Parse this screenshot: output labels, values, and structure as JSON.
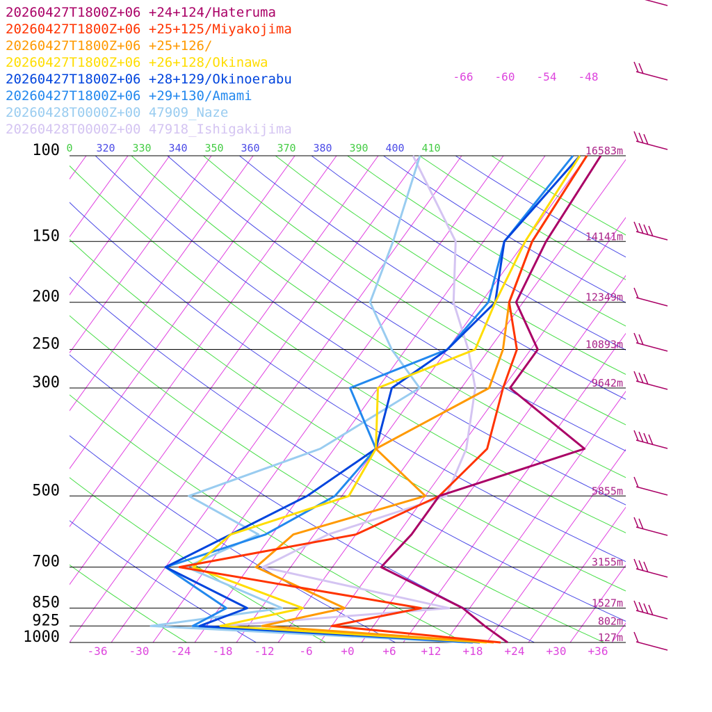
{
  "chart_data": {
    "type": "line",
    "title": "",
    "xlabel": "",
    "ylabel": "",
    "xlim": [
      -40,
      40
    ],
    "ylim": [
      1000,
      100
    ],
    "y_scale": "log",
    "skew": "Skew-T log-P",
    "y_ticks": [
      "100",
      "150",
      "200",
      "250",
      "300",
      "500",
      "700",
      "850",
      "925",
      "1000"
    ],
    "y_tick_values": [
      100,
      150,
      200,
      250,
      300,
      500,
      700,
      850,
      925,
      1000
    ],
    "x_ticks": [
      "-36",
      "-30",
      "-24",
      "-18",
      "-12",
      "-6",
      "+0",
      "+6",
      "+12",
      "+18",
      "+24",
      "+30",
      "+36"
    ],
    "x_tick_values": [
      -36,
      -30,
      -24,
      -18,
      -12,
      -6,
      0,
      6,
      12,
      18,
      24,
      30,
      36
    ],
    "height_labels": [
      {
        "p": 100,
        "text": "16583m"
      },
      {
        "p": 150,
        "text": "14141m"
      },
      {
        "p": 200,
        "text": "12349m"
      },
      {
        "p": 250,
        "text": "10893m"
      },
      {
        "p": 300,
        "text": "9642m"
      },
      {
        "p": 500,
        "text": "5855m"
      },
      {
        "p": 700,
        "text": "3155m"
      },
      {
        "p": 850,
        "text": "1527m"
      },
      {
        "p": 925,
        "text": "802m"
      },
      {
        "p": 1000,
        "text": "127m"
      }
    ],
    "theta_labels": [
      "0",
      "320",
      "330",
      "340",
      "350",
      "360",
      "370",
      "380",
      "390",
      "400",
      "410"
    ],
    "isotherm_top_labels": [
      "-66",
      "-60",
      "-54",
      "-48"
    ],
    "series": [
      {
        "name": "20260427T1800Z+06 +24+124/Hateruma",
        "color": "#aa0066",
        "p": [
          1000,
          925,
          850,
          700,
          600,
          500,
          400,
          300,
          250,
          200,
          150,
          100
        ],
        "t": [
          23,
          18,
          13,
          -3,
          -2,
          -2,
          14,
          -3,
          -3,
          -11,
          -13,
          -14
        ]
      },
      {
        "name": "20260427T1800Z+06 +25+125/Miyakojima",
        "color": "#ff3300",
        "p": [
          1000,
          925,
          850,
          700,
          600,
          500,
          400,
          300,
          250,
          200,
          150,
          100
        ],
        "t": [
          22,
          -4,
          7,
          -32,
          -10,
          -2,
          0,
          -4,
          -6,
          -12,
          -15,
          -16
        ]
      },
      {
        "name": "20260427T1800Z+06 +25+126/",
        "color": "#ff9900",
        "p": [
          1000,
          925,
          850,
          700,
          600,
          500,
          400,
          300,
          250,
          200,
          150,
          100
        ],
        "t": [
          21,
          -14,
          -4,
          -21,
          -19,
          -4,
          -16,
          -6,
          -8,
          -12,
          -15,
          -16
        ]
      },
      {
        "name": "20260427T1800Z+06 +26+128/Okinawa",
        "color": "#ffdd00",
        "p": [
          1000,
          925,
          850,
          700,
          600,
          500,
          400,
          300,
          250,
          200,
          150,
          100
        ],
        "t": [
          20,
          -20,
          -10,
          -30,
          -28,
          -15,
          -16,
          -22,
          -12,
          -14,
          -16,
          -17
        ]
      },
      {
        "name": "20260427T1800Z+06 +28+129/Okinoerabu",
        "color": "#0044dd",
        "p": [
          1000,
          925,
          850,
          700,
          600,
          500,
          400,
          300,
          250,
          200,
          150,
          100
        ],
        "t": [
          19,
          -23,
          -18,
          -34,
          -28,
          -21,
          -16,
          -20,
          -16,
          -14,
          -19,
          -17
        ]
      },
      {
        "name": "20260427T1800Z+06 +29+130/Amami",
        "color": "#2288ee",
        "p": [
          1000,
          925,
          850,
          700,
          600,
          500,
          400,
          300,
          250,
          200,
          150,
          100
        ],
        "t": [
          18,
          -24,
          -21,
          -34,
          -23,
          -17,
          -16,
          -26,
          -16,
          -15,
          -19,
          -18
        ]
      },
      {
        "name": "20260428T0000Z+00 47909_Naze",
        "color": "#99ccf0",
        "p": [
          1000,
          925,
          850,
          700,
          600,
          500,
          400,
          300,
          250,
          200,
          150,
          100
        ],
        "t": [
          17,
          -30,
          -13,
          -31,
          -24,
          -38,
          -24,
          -16,
          -24,
          -32,
          -35,
          -40
        ]
      },
      {
        "name": "20260428T0000Z+00 47918_Ishigakijima",
        "color": "#d4c4f2",
        "p": [
          1000,
          925,
          850,
          700,
          600,
          500,
          400,
          300,
          250,
          200,
          150,
          100
        ],
        "t": [
          18,
          -20,
          11,
          -20,
          -14,
          -1,
          -3,
          -8,
          -13,
          -20,
          -26,
          -41
        ]
      }
    ],
    "legend": "top-left",
    "grid": true,
    "wind_barbs": true
  }
}
